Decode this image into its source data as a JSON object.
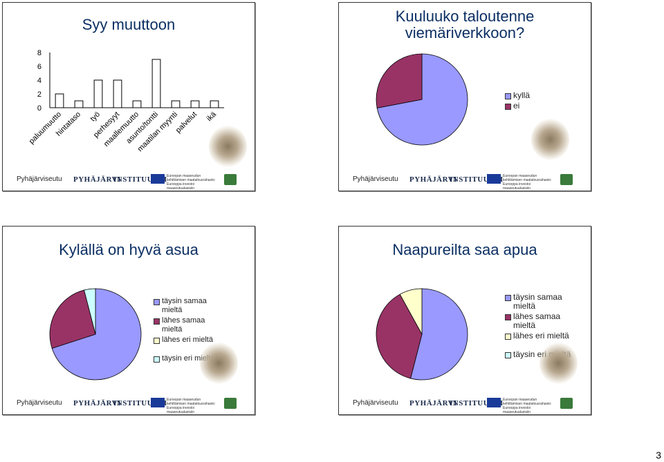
{
  "slides": [
    {
      "title": "Syy muuttoon",
      "chart_data": {
        "type": "bar",
        "title": "Syy muuttoon",
        "categories": [
          "paluumuutto",
          "hintataso",
          "työ",
          "perhesyyt",
          "maallemuutto",
          "asunto/tontti",
          "maatilan myynti",
          "palvelut",
          "ikä"
        ],
        "values": [
          2,
          1,
          4,
          4,
          1,
          7,
          1,
          1,
          1
        ],
        "yticks": [
          "0",
          "2",
          "4",
          "6",
          "8"
        ],
        "ylim": [
          0,
          8
        ]
      }
    },
    {
      "title": "Kuuluuko taloutenne viemäriverkkoon?",
      "chart_data": {
        "type": "pie",
        "labels": [
          "kyllä",
          "ei"
        ],
        "values": [
          72,
          28
        ],
        "colors": [
          "#9999ff",
          "#993366"
        ]
      }
    },
    {
      "title": "Kylällä on hyvä asua",
      "chart_data": {
        "type": "pie",
        "labels": [
          "täysin samaa mieltä",
          "lähes samaa mieltä",
          "lähes eri mieltä",
          "täysin eri mieltä"
        ],
        "values": [
          70,
          26,
          0,
          4
        ],
        "colors": [
          "#9999ff",
          "#993366",
          "#ffffcc",
          "#ccffff"
        ]
      }
    },
    {
      "title": "Naapureilta saa apua",
      "chart_data": {
        "type": "pie",
        "labels": [
          "täysin samaa mieltä",
          "lähes samaa mieltä",
          "lähes eri mieltä",
          "täysin eri mieltä"
        ],
        "values": [
          54,
          38,
          8,
          0
        ],
        "colors": [
          "#9999ff",
          "#993366",
          "#ffffcc",
          "#ccffff"
        ]
      }
    }
  ],
  "footer": {
    "logo1": "Pyhäjärviseutu",
    "logo2": "PYHÄJÄRVI",
    "logo3": "INSTITUUTTI",
    "eu_line1": "Euroopan maaseudun",
    "eu_line2": "kehittämisen maatalousrahasto:",
    "eu_line3": "Eurooppa investoi maaseutualueisiin"
  },
  "page_number": "3"
}
